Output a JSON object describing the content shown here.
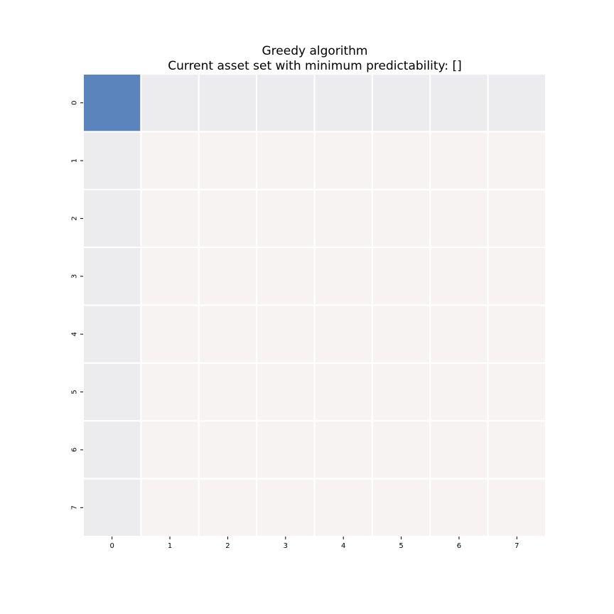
{
  "chart_data": {
    "type": "heatmap",
    "title": "Greedy algorithm",
    "subtitle": "Current asset set with minimum predictability: []",
    "xlabel": "",
    "ylabel": "",
    "x_tick_labels": [
      "0",
      "1",
      "2",
      "3",
      "4",
      "5",
      "6",
      "7"
    ],
    "y_tick_labels": [
      "0",
      "1",
      "2",
      "3",
      "4",
      "5",
      "6",
      "7"
    ],
    "values": [
      [
        1.0,
        0.0,
        0.0,
        0.0,
        0.0,
        0.0,
        0.0,
        0.0
      ],
      [
        0.0,
        -0.02,
        -0.02,
        -0.02,
        -0.02,
        -0.02,
        -0.02,
        -0.02
      ],
      [
        0.0,
        -0.02,
        -0.02,
        -0.02,
        -0.02,
        -0.02,
        -0.02,
        -0.02
      ],
      [
        0.0,
        -0.02,
        -0.02,
        -0.02,
        -0.02,
        -0.02,
        -0.02,
        -0.02
      ],
      [
        0.0,
        -0.02,
        -0.02,
        -0.02,
        -0.02,
        -0.02,
        -0.02,
        -0.02
      ],
      [
        0.0,
        -0.02,
        -0.02,
        -0.02,
        -0.02,
        -0.02,
        -0.02,
        -0.02
      ],
      [
        0.0,
        -0.02,
        -0.02,
        -0.02,
        -0.02,
        -0.02,
        -0.02,
        -0.02
      ],
      [
        0.0,
        -0.02,
        -0.02,
        -0.02,
        -0.02,
        -0.02,
        -0.02,
        -0.02
      ]
    ],
    "colors": {
      "high": "#5b84bd",
      "neutral": "#ececef",
      "low": "#f8f3f3",
      "gridline": "#ffffff"
    }
  }
}
